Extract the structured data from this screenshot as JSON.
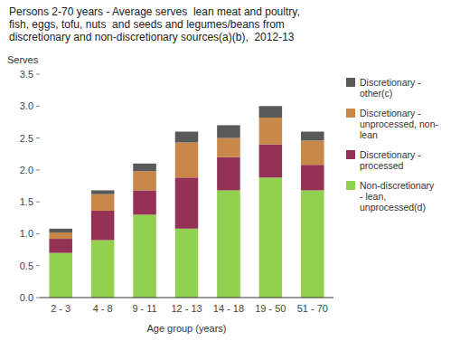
{
  "chart_data": {
    "type": "bar",
    "stacked": true,
    "title": "Persons 2-70 years - Average serves  lean meat and poultry,\nfish, eggs, tofu, nuts  and seeds and legumes/beans from\ndiscretionary and non-discretionary sources(a)(b),  2012-13",
    "xlabel": "Age group (years)",
    "ylabel": "Serves",
    "categories": [
      "2 - 3",
      "4 - 8",
      "9 - 11",
      "12 - 13",
      "14 - 18",
      "19 - 50",
      "51 - 70"
    ],
    "series": [
      {
        "name": "Non-discretionary\n- lean,\nunprocessed(d)",
        "color": "#92D050",
        "values": [
          0.7,
          0.9,
          1.3,
          1.08,
          1.68,
          1.88,
          1.68
        ]
      },
      {
        "name": "Discretionary -\nprocessed",
        "color": "#943256",
        "values": [
          0.22,
          0.46,
          0.38,
          0.8,
          0.52,
          0.52,
          0.4
        ]
      },
      {
        "name": "Discretionary -\nunprocessed, non-\nlean",
        "color": "#C8884A",
        "values": [
          0.1,
          0.26,
          0.3,
          0.55,
          0.3,
          0.42,
          0.38
        ]
      },
      {
        "name": "Discretionary -\nother(c)",
        "color": "#595959",
        "values": [
          0.06,
          0.06,
          0.12,
          0.17,
          0.2,
          0.18,
          0.14
        ]
      }
    ],
    "ylim": [
      0,
      3.5
    ],
    "yticks": [
      {
        "value": 0,
        "label": "0.0"
      },
      0.5,
      {
        "value": 1,
        "label": "1.0"
      },
      1.5,
      {
        "value": 2,
        "label": "2.0"
      },
      2.5,
      {
        "value": 3,
        "label": "3.0"
      },
      3.5
    ],
    "grid": false,
    "legend": "right"
  }
}
